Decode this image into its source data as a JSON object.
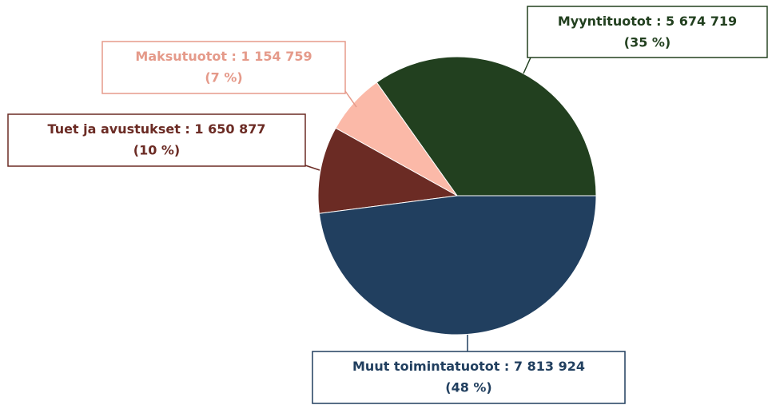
{
  "chart_data": {
    "type": "pie",
    "categories": [
      "Myyntituotot",
      "Maksutuotot",
      "Tuet ja avustukset",
      "Muut toimintatuotot"
    ],
    "separator": " : ",
    "values": [
      5674719,
      1154759,
      1650877,
      7813924
    ],
    "value_labels": [
      "5 674 719",
      "1 154 759",
      "1 650 877",
      "7 813 924"
    ],
    "percent_labels": [
      "(35 %)",
      "(7 %)",
      "(10 %)",
      "(48 %)"
    ],
    "colors": [
      "#22401f",
      "#fbb9a8",
      "#6b2b24",
      "#213f5f"
    ],
    "label_colors": [
      "#22401f",
      "#e59a8a",
      "#6b2b24",
      "#213f5f"
    ],
    "start_angle": 0,
    "direction": "counterclockwise"
  }
}
